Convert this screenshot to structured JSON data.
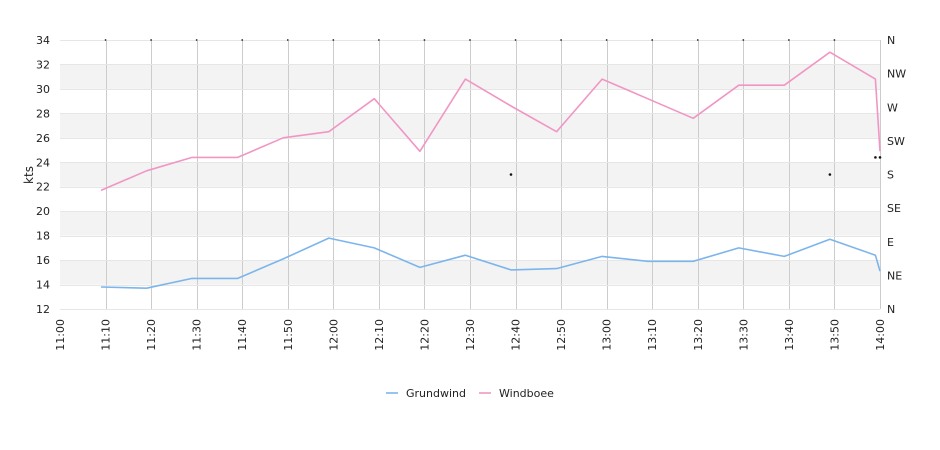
{
  "chart_data": {
    "type": "line",
    "title": "",
    "xlabel": "",
    "ylabel": "kts",
    "x_ticks": [
      "11:00",
      "11:10",
      "11:20",
      "11:30",
      "11:40",
      "11:50",
      "12:00",
      "12:10",
      "12:20",
      "12:30",
      "12:40",
      "12:50",
      "13:00",
      "13:10",
      "13:20",
      "13:30",
      "13:40",
      "13:50",
      "14:00"
    ],
    "ylim": [
      12,
      34
    ],
    "y_ticks": [
      "12",
      "14",
      "16",
      "18",
      "20",
      "22",
      "24",
      "26",
      "28",
      "30",
      "32",
      "34"
    ],
    "y2_ticks": [
      "N",
      "NE",
      "E",
      "SE",
      "S",
      "SW",
      "W",
      "NW",
      "N"
    ],
    "grid": true,
    "legend": "bottom-center",
    "x": [
      "11:09",
      "11:19",
      "11:29",
      "11:39",
      "11:49",
      "11:59",
      "12:09",
      "12:19",
      "12:29",
      "12:39",
      "12:49",
      "12:59",
      "13:09",
      "13:19",
      "13:29",
      "13:39",
      "13:49",
      "13:59",
      "14:00"
    ],
    "series": [
      {
        "name": "Grundwind",
        "color": "#7cb5ec",
        "values": [
          13.8,
          13.7,
          14.5,
          14.5,
          16.1,
          17.8,
          17.0,
          15.4,
          16.4,
          15.2,
          15.3,
          16.3,
          15.9,
          15.9,
          17.0,
          16.3,
          17.7,
          16.4,
          15.1
        ]
      },
      {
        "name": "Windboee",
        "color": "#f196c4",
        "values": [
          21.7,
          23.3,
          24.4,
          24.4,
          26.0,
          26.5,
          29.2,
          24.9,
          30.8,
          28.6,
          26.5,
          30.8,
          29.2,
          27.6,
          30.3,
          30.3,
          33.0,
          30.8,
          24.9
        ]
      }
    ],
    "direction_markers": [
      {
        "x": "12:39",
        "value": 23
      },
      {
        "x": "13:49",
        "value": 23
      },
      {
        "x": "13:59",
        "value": 24.4
      },
      {
        "x": "14:00",
        "value": 24.4
      }
    ]
  }
}
